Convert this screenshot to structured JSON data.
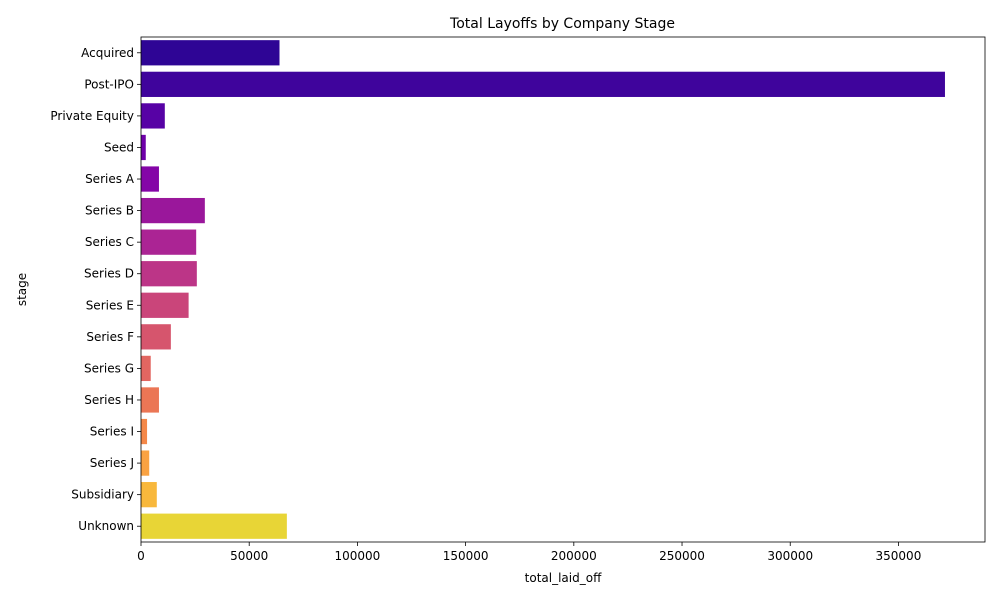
{
  "chart_data": {
    "type": "bar",
    "orientation": "horizontal",
    "title": "Total Layoffs by Company Stage",
    "xlabel": "total_laid_off",
    "ylabel": "stage",
    "xlim": [
      0,
      390000
    ],
    "xticks": [
      0,
      50000,
      100000,
      150000,
      200000,
      250000,
      300000,
      350000
    ],
    "grid": false,
    "legend": "none",
    "palette": "plasma",
    "categories": [
      "Acquired",
      "Post-IPO",
      "Private Equity",
      "Seed",
      "Series A",
      "Series B",
      "Series C",
      "Series D",
      "Series E",
      "Series F",
      "Series G",
      "Series H",
      "Series I",
      "Series J",
      "Subsidiary",
      "Unknown"
    ],
    "values": [
      64000,
      371500,
      11000,
      2200,
      8300,
      29500,
      25500,
      25800,
      22000,
      13800,
      4500,
      8300,
      2800,
      3800,
      7300,
      67400
    ],
    "colors": [
      "#2e0595",
      "#3f049c",
      "#5702a5",
      "#6e00a8",
      "#8405a7",
      "#9a179b",
      "#ab2494",
      "#bc3587",
      "#ca457a",
      "#d6556d",
      "#e26661",
      "#eb7655",
      "#f48849",
      "#f9a242",
      "#f8b83c",
      "#e8d536"
    ]
  }
}
